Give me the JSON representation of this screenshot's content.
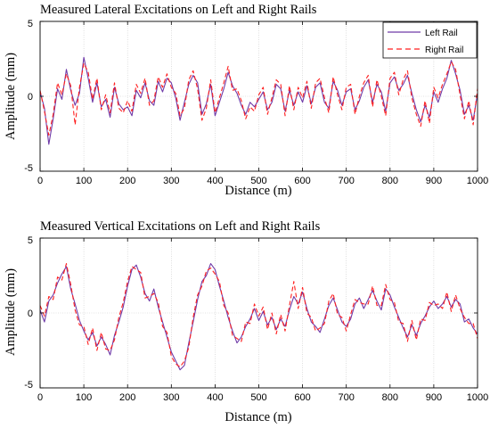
{
  "chart_data": [
    {
      "type": "line",
      "title": "Measured Lateral Excitations on Left and Right Rails",
      "xlabel": "Distance (m)",
      "ylabel": "Amplitude (mm)",
      "xlim": [
        0,
        1000
      ],
      "ylim": [
        -5,
        5
      ],
      "xticks": [
        "0",
        "100",
        "200",
        "300",
        "400",
        "500",
        "600",
        "700",
        "800",
        "900",
        "1000"
      ],
      "yticks": [
        "5",
        "0",
        "-5"
      ],
      "grid": "vertical only",
      "legend": "top-right",
      "series": [
        {
          "name": "Left Rail",
          "color": "#6f3aa8",
          "style": "solid",
          "x": [
            0,
            10,
            20,
            30,
            40,
            50,
            60,
            70,
            80,
            90,
            100,
            110,
            120,
            130,
            140,
            150,
            160,
            170,
            180,
            190,
            200,
            210,
            220,
            230,
            240,
            250,
            260,
            270,
            280,
            290,
            300,
            310,
            320,
            330,
            340,
            350,
            360,
            370,
            380,
            390,
            400,
            410,
            420,
            430,
            440,
            450,
            460,
            470,
            480,
            490,
            500,
            510,
            520,
            530,
            540,
            550,
            560,
            570,
            580,
            590,
            600,
            610,
            620,
            630,
            640,
            650,
            660,
            670,
            680,
            690,
            700,
            710,
            720,
            730,
            740,
            750,
            760,
            770,
            780,
            790,
            800,
            810,
            820,
            830,
            840,
            850,
            860,
            870,
            880,
            890,
            900,
            910,
            920,
            930,
            940,
            950,
            960,
            970,
            980,
            990,
            1000
          ],
          "values": [
            0.3,
            -0.8,
            -3.2,
            -1.5,
            0.5,
            -0.2,
            1.8,
            0.4,
            -0.6,
            0.2,
            2.6,
            1.2,
            -0.4,
            0.9,
            -0.7,
            -0.2,
            -1.4,
            0.6,
            -0.5,
            -0.9,
            -0.7,
            -1.3,
            0.4,
            -0.1,
            0.9,
            -0.3,
            -0.6,
            1.0,
            0.3,
            1.2,
            0.9,
            -0.1,
            -1.6,
            -0.4,
            0.8,
            1.4,
            0.9,
            -1.2,
            -0.5,
            0.8,
            -1.3,
            -0.4,
            0.5,
            1.6,
            0.7,
            0.2,
            -0.6,
            -1.2,
            -0.4,
            -0.7,
            -0.2,
            0.3,
            -0.9,
            -0.4,
            0.8,
            0.5,
            -1.0,
            0.4,
            -0.6,
            0.3,
            -0.4,
            0.7,
            -0.5,
            0.6,
            0.9,
            -0.4,
            -0.8,
            1.0,
            0.4,
            -0.6,
            0.3,
            0.5,
            -0.9,
            -0.3,
            0.6,
            1.1,
            -0.4,
            0.8,
            0.3,
            -1.0,
            0.9,
            1.3,
            0.4,
            0.8,
            1.4,
            0.2,
            -0.9,
            -1.7,
            -0.6,
            -1.4,
            0.3,
            -0.4,
            0.5,
            1.2,
            2.4,
            1.5,
            0.4,
            -1.2,
            -0.6,
            -1.6,
            0.2
          ]
        },
        {
          "name": "Right Rail",
          "color": "#ff1f1f",
          "style": "dashed",
          "x": [
            0,
            10,
            20,
            30,
            40,
            50,
            60,
            70,
            80,
            90,
            100,
            110,
            120,
            130,
            140,
            150,
            160,
            170,
            180,
            190,
            200,
            210,
            220,
            230,
            240,
            250,
            260,
            270,
            280,
            290,
            300,
            310,
            320,
            330,
            340,
            350,
            360,
            370,
            380,
            390,
            400,
            410,
            420,
            430,
            440,
            450,
            460,
            470,
            480,
            490,
            500,
            510,
            520,
            530,
            540,
            550,
            560,
            570,
            580,
            590,
            600,
            610,
            620,
            630,
            640,
            650,
            660,
            670,
            680,
            690,
            700,
            710,
            720,
            730,
            740,
            750,
            760,
            770,
            780,
            790,
            800,
            810,
            820,
            830,
            840,
            850,
            860,
            870,
            880,
            890,
            900,
            910,
            920,
            930,
            940,
            950,
            960,
            970,
            980,
            990,
            1000
          ],
          "values": [
            0.4,
            -1.0,
            -2.6,
            -1.2,
            0.9,
            0.1,
            1.5,
            0.7,
            -1.9,
            0.6,
            2.2,
            1.6,
            -0.2,
            1.2,
            -0.9,
            0.1,
            -1.1,
            0.9,
            -0.8,
            -1.1,
            -0.3,
            -1.0,
            0.8,
            0.2,
            1.2,
            -0.6,
            -0.3,
            1.3,
            0.6,
            1.5,
            0.6,
            0.2,
            -1.3,
            -0.8,
            1.1,
            1.7,
            0.5,
            -1.6,
            -0.8,
            1.1,
            -1.1,
            -0.1,
            0.9,
            2.0,
            0.4,
            0.5,
            -0.3,
            -1.5,
            -0.7,
            -1.0,
            0.1,
            0.6,
            -1.2,
            -0.1,
            1.1,
            0.8,
            -1.3,
            0.7,
            -0.9,
            0.6,
            -0.1,
            1.0,
            -0.8,
            0.9,
            1.2,
            -0.1,
            -1.1,
            1.3,
            0.1,
            -0.9,
            0.6,
            0.8,
            -1.2,
            0.0,
            0.9,
            1.4,
            -0.7,
            1.1,
            0.0,
            -1.3,
            1.2,
            1.6,
            0.1,
            1.1,
            1.7,
            -0.1,
            -1.2,
            -2.0,
            -0.3,
            -1.8,
            0.6,
            -0.1,
            0.8,
            1.5,
            2.3,
            1.8,
            0.1,
            -1.5,
            -0.3,
            -1.9,
            0.5
          ]
        }
      ]
    },
    {
      "type": "line",
      "title": "Measured Vertical Excitations on Left and Right Rails",
      "xlabel": "Distance (m)",
      "ylabel": "Amplitude (mm)",
      "xlim": [
        0,
        1000
      ],
      "ylim": [
        -5,
        5
      ],
      "xticks": [
        "0",
        "100",
        "200",
        "300",
        "400",
        "500",
        "600",
        "700",
        "800",
        "900",
        "1000"
      ],
      "yticks": [
        "5",
        "0",
        "-5"
      ],
      "grid": "vertical only",
      "series": [
        {
          "name": "Left Rail",
          "color": "#6f3aa8",
          "style": "solid",
          "x": [
            0,
            10,
            20,
            30,
            40,
            50,
            60,
            70,
            80,
            90,
            100,
            110,
            120,
            130,
            140,
            150,
            160,
            170,
            180,
            190,
            200,
            210,
            220,
            230,
            240,
            250,
            260,
            270,
            280,
            290,
            300,
            310,
            320,
            330,
            340,
            350,
            360,
            370,
            380,
            390,
            400,
            410,
            420,
            430,
            440,
            450,
            460,
            470,
            480,
            490,
            500,
            510,
            520,
            530,
            540,
            550,
            560,
            570,
            580,
            590,
            600,
            610,
            620,
            630,
            640,
            650,
            660,
            670,
            680,
            690,
            700,
            710,
            720,
            730,
            740,
            750,
            760,
            770,
            780,
            790,
            800,
            810,
            820,
            830,
            840,
            850,
            860,
            870,
            880,
            890,
            900,
            910,
            920,
            930,
            940,
            950,
            960,
            970,
            980,
            990,
            1000
          ],
          "values": [
            0.2,
            -0.6,
            0.8,
            1.2,
            2.0,
            2.6,
            3.1,
            1.6,
            0.6,
            -0.5,
            -1.2,
            -1.8,
            -1.3,
            -2.2,
            -1.6,
            -2.1,
            -2.8,
            -1.5,
            -0.6,
            0.4,
            1.8,
            2.9,
            3.2,
            2.4,
            1.3,
            0.8,
            1.6,
            0.4,
            -0.6,
            -1.6,
            -2.6,
            -3.2,
            -3.8,
            -3.5,
            -2.0,
            -0.6,
            0.9,
            2.1,
            2.5,
            3.3,
            2.9,
            1.8,
            0.8,
            -0.3,
            -1.2,
            -2.0,
            -1.6,
            -0.9,
            -0.4,
            0.3,
            -0.5,
            0.1,
            -0.8,
            -0.3,
            -1.1,
            -0.4,
            -0.9,
            0.2,
            1.1,
            0.6,
            1.4,
            0.3,
            -0.6,
            -0.9,
            -1.3,
            -0.4,
            0.5,
            1.0,
            0.2,
            -0.6,
            -0.9,
            -0.4,
            0.6,
            1.0,
            0.3,
            0.9,
            1.5,
            0.8,
            0.2,
            1.6,
            1.2,
            0.4,
            -0.3,
            -1.0,
            -1.6,
            -0.8,
            -1.5,
            -0.7,
            -0.2,
            0.4,
            0.8,
            0.3,
            0.6,
            1.1,
            0.4,
            0.9,
            0.6,
            -0.6,
            -0.4,
            -1.0,
            -1.4
          ]
        },
        {
          "name": "Right Rail",
          "color": "#ff1f1f",
          "style": "dashed",
          "x": [
            0,
            10,
            20,
            30,
            40,
            50,
            60,
            70,
            80,
            90,
            100,
            110,
            120,
            130,
            140,
            150,
            160,
            170,
            180,
            190,
            200,
            210,
            220,
            230,
            240,
            250,
            260,
            270,
            280,
            290,
            300,
            310,
            320,
            330,
            340,
            350,
            360,
            370,
            380,
            390,
            400,
            410,
            420,
            430,
            440,
            450,
            460,
            470,
            480,
            490,
            500,
            510,
            520,
            530,
            540,
            550,
            560,
            570,
            580,
            590,
            600,
            610,
            620,
            630,
            640,
            650,
            660,
            670,
            680,
            690,
            700,
            710,
            720,
            730,
            740,
            750,
            760,
            770,
            780,
            790,
            800,
            810,
            820,
            830,
            840,
            850,
            860,
            870,
            880,
            890,
            900,
            910,
            920,
            930,
            940,
            950,
            960,
            970,
            980,
            990,
            1000
          ],
          "values": [
            0.5,
            -0.2,
            1.1,
            0.9,
            2.4,
            2.2,
            3.3,
            1.9,
            0.2,
            -0.8,
            -0.9,
            -2.1,
            -1.0,
            -2.5,
            -1.3,
            -2.4,
            -2.5,
            -1.8,
            -0.3,
            0.7,
            2.1,
            3.1,
            2.9,
            2.7,
            1.0,
            1.1,
            1.3,
            0.7,
            -0.9,
            -1.3,
            -2.9,
            -3.4,
            -3.6,
            -3.2,
            -2.3,
            -0.3,
            1.2,
            1.8,
            2.8,
            3.0,
            2.6,
            2.1,
            0.5,
            0.0,
            -1.5,
            -1.7,
            -1.9,
            -0.6,
            -0.7,
            0.6,
            -0.2,
            0.4,
            -1.1,
            0.0,
            -1.4,
            -0.1,
            -1.2,
            0.5,
            2.1,
            0.3,
            1.7,
            0.0,
            -0.3,
            -1.2,
            -1.0,
            -0.7,
            0.8,
            1.3,
            -0.1,
            -0.3,
            -1.2,
            -0.1,
            0.9,
            0.7,
            0.6,
            0.6,
            1.8,
            0.5,
            0.5,
            1.9,
            0.9,
            0.7,
            -0.6,
            -0.7,
            -1.9,
            -0.5,
            -1.8,
            -0.4,
            -0.5,
            0.7,
            0.5,
            0.6,
            0.3,
            1.4,
            0.1,
            1.2,
            0.3,
            -0.3,
            -0.7,
            -0.7,
            -1.7
          ]
        }
      ]
    }
  ]
}
